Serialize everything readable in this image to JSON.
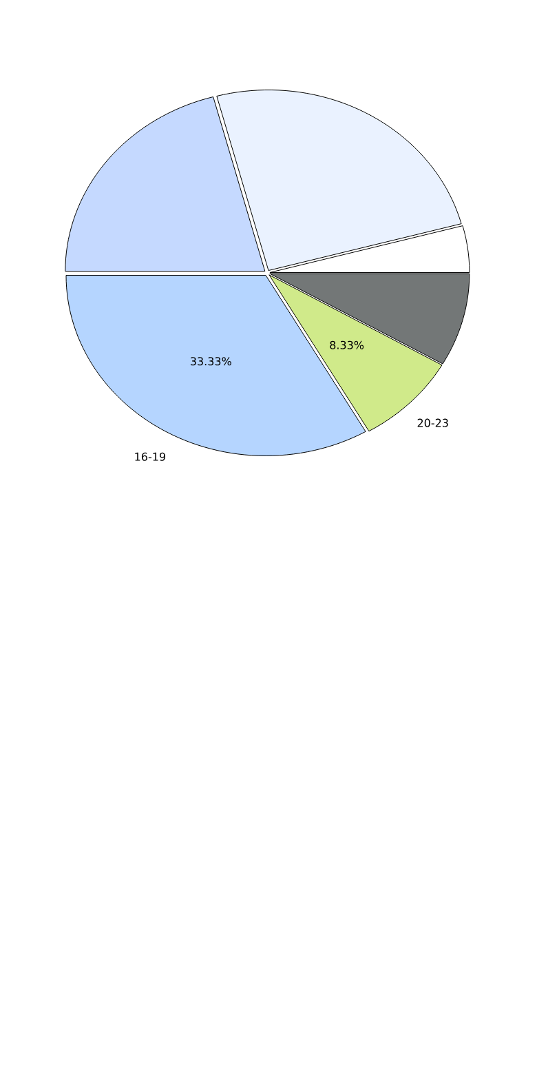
{
  "chart_data": {
    "type": "pie",
    "categories": [
      null,
      null,
      null,
      "16-19",
      "20-23",
      null
    ],
    "values": [
      4.17,
      25,
      20.83,
      33.33,
      8.33,
      8.33
    ],
    "colors": [
      "#ffffff",
      "#eaf2ff",
      "#c5d9ff",
      "#b5d5ff",
      "#d0ea8a",
      "#737777"
    ],
    "value_labels": [
      null,
      null,
      null,
      "33.33%",
      "8.33%",
      null
    ]
  }
}
